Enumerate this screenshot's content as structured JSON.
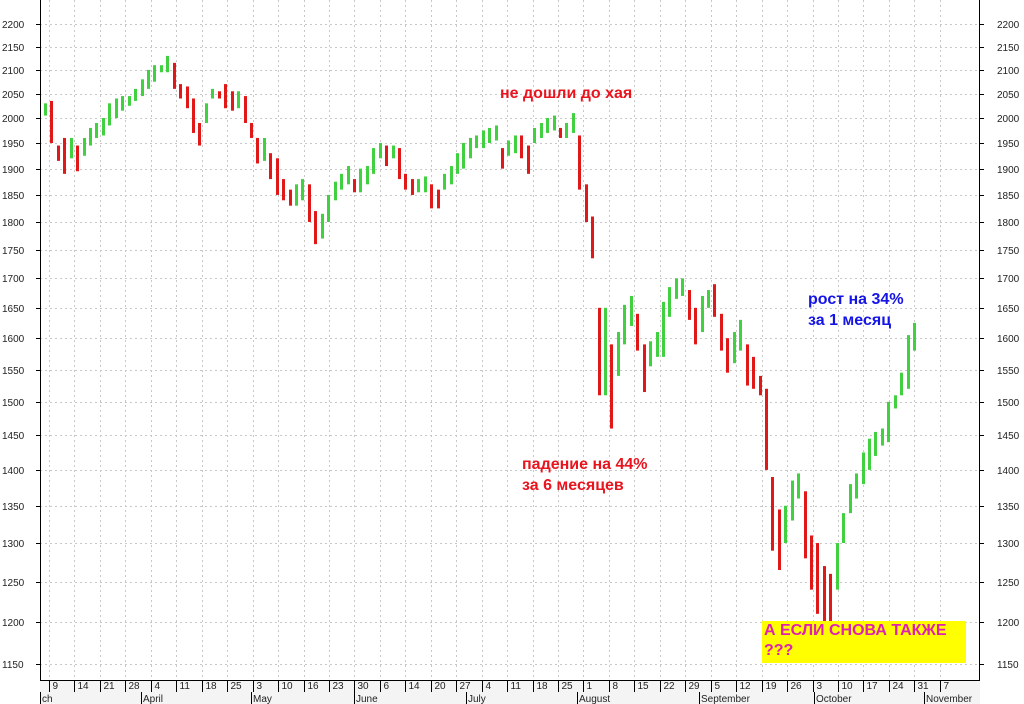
{
  "chart_data": {
    "type": "ohlc",
    "y_ticks": [
      "2200",
      "2150",
      "2100",
      "2050",
      "2000",
      "1950",
      "1900",
      "1850",
      "1800",
      "1750",
      "1700",
      "1650",
      "1600",
      "1550",
      "1500",
      "1450",
      "1400",
      "1350",
      "1300",
      "1250",
      "1200",
      "1150"
    ],
    "ylim": [
      1125,
      2225
    ],
    "log_scale": true,
    "grid": true,
    "x_day_labels": [
      "9",
      "14",
      "21",
      "28",
      "4",
      "11",
      "18",
      "25",
      "3",
      "10",
      "16",
      "23",
      "30",
      "6",
      "14",
      "20",
      "27",
      "4",
      "11",
      "18",
      "25",
      "1",
      "8",
      "15",
      "22",
      "29",
      "5",
      "12",
      "19",
      "26",
      "3",
      "10",
      "17",
      "24",
      "31",
      "7"
    ],
    "x_month_labels": [
      "ch",
      "April",
      "May",
      "June",
      "July",
      "August",
      "September",
      "October",
      "November"
    ],
    "bars_high_low": [
      [
        2030,
        2005
      ],
      [
        2035,
        1950
      ],
      [
        1945,
        1915
      ],
      [
        1960,
        1890
      ],
      [
        1960,
        1920
      ],
      [
        1945,
        1895
      ],
      [
        1960,
        1925
      ],
      [
        1980,
        1945
      ],
      [
        1990,
        1960
      ],
      [
        2000,
        1965
      ],
      [
        2030,
        1985
      ],
      [
        2040,
        2000
      ],
      [
        2045,
        2015
      ],
      [
        2045,
        2025
      ],
      [
        2060,
        2035
      ],
      [
        2080,
        2045
      ],
      [
        2100,
        2060
      ],
      [
        2110,
        2075
      ],
      [
        2110,
        2095
      ],
      [
        2130,
        2095
      ],
      [
        2115,
        2060
      ],
      [
        2070,
        2040
      ],
      [
        2065,
        2020
      ],
      [
        2040,
        1970
      ],
      [
        1990,
        1945
      ],
      [
        2030,
        1990
      ],
      [
        2060,
        2040
      ],
      [
        2055,
        2040
      ],
      [
        2070,
        2020
      ],
      [
        2055,
        2015
      ],
      [
        2055,
        2020
      ],
      [
        2045,
        1990
      ],
      [
        1990,
        1960
      ],
      [
        1960,
        1910
      ],
      [
        1960,
        1915
      ],
      [
        1930,
        1880
      ],
      [
        1920,
        1850
      ],
      [
        1880,
        1840
      ],
      [
        1860,
        1830
      ],
      [
        1870,
        1830
      ],
      [
        1880,
        1840
      ],
      [
        1870,
        1800
      ],
      [
        1820,
        1760
      ],
      [
        1815,
        1770
      ],
      [
        1850,
        1800
      ],
      [
        1875,
        1840
      ],
      [
        1890,
        1860
      ],
      [
        1905,
        1870
      ],
      [
        1880,
        1855
      ],
      [
        1900,
        1855
      ],
      [
        1905,
        1870
      ],
      [
        1940,
        1890
      ],
      [
        1950,
        1920
      ],
      [
        1945,
        1905
      ],
      [
        1945,
        1920
      ],
      [
        1940,
        1880
      ],
      [
        1890,
        1860
      ],
      [
        1880,
        1850
      ],
      [
        1880,
        1855
      ],
      [
        1885,
        1855
      ],
      [
        1870,
        1825
      ],
      [
        1860,
        1825
      ],
      [
        1890,
        1860
      ],
      [
        1905,
        1870
      ],
      [
        1930,
        1890
      ],
      [
        1950,
        1900
      ],
      [
        1960,
        1920
      ],
      [
        1965,
        1940
      ],
      [
        1975,
        1940
      ],
      [
        1980,
        1950
      ],
      [
        1985,
        1955
      ],
      [
        1940,
        1900
      ],
      [
        1955,
        1925
      ],
      [
        1965,
        1930
      ],
      [
        1965,
        1920
      ],
      [
        1945,
        1890
      ],
      [
        1980,
        1950
      ],
      [
        1990,
        1960
      ],
      [
        2000,
        1970
      ],
      [
        2005,
        1975
      ],
      [
        1980,
        1960
      ],
      [
        1990,
        1960
      ],
      [
        2010,
        1970
      ],
      [
        1965,
        1860
      ],
      [
        1870,
        1800
      ],
      [
        1810,
        1735
      ],
      [
        1650,
        1510
      ],
      [
        1650,
        1510
      ],
      [
        1590,
        1460
      ],
      [
        1610,
        1540
      ],
      [
        1655,
        1590
      ],
      [
        1670,
        1620
      ],
      [
        1640,
        1580
      ],
      [
        1590,
        1515
      ],
      [
        1595,
        1555
      ],
      [
        1610,
        1570
      ],
      [
        1660,
        1570
      ],
      [
        1685,
        1635
      ],
      [
        1700,
        1665
      ],
      [
        1700,
        1670
      ],
      [
        1680,
        1630
      ],
      [
        1650,
        1590
      ],
      [
        1670,
        1610
      ],
      [
        1680,
        1650
      ],
      [
        1690,
        1635
      ],
      [
        1640,
        1580
      ],
      [
        1600,
        1545
      ],
      [
        1610,
        1560
      ],
      [
        1630,
        1580
      ],
      [
        1590,
        1525
      ],
      [
        1570,
        1520
      ],
      [
        1540,
        1510
      ],
      [
        1520,
        1400
      ],
      [
        1390,
        1290
      ],
      [
        1345,
        1265
      ],
      [
        1350,
        1300
      ],
      [
        1385,
        1330
      ],
      [
        1395,
        1360
      ],
      [
        1370,
        1280
      ],
      [
        1310,
        1240
      ],
      [
        1300,
        1210
      ],
      [
        1270,
        1200
      ],
      [
        1260,
        1200
      ],
      [
        1300,
        1240
      ],
      [
        1340,
        1300
      ],
      [
        1380,
        1340
      ],
      [
        1395,
        1360
      ],
      [
        1425,
        1380
      ],
      [
        1445,
        1400
      ],
      [
        1455,
        1420
      ],
      [
        1460,
        1435
      ],
      [
        1500,
        1440
      ],
      [
        1510,
        1490
      ],
      [
        1545,
        1510
      ],
      [
        1605,
        1520
      ],
      [
        1625,
        1580
      ]
    ],
    "annotations": [
      "не дошли до хая",
      "рост на 34%",
      "за 1 месяц",
      "падение на 44%",
      "за 6 месяцев",
      "А ЕСЛИ СНОВА ТАКЖЕ",
      "???"
    ],
    "colors": {
      "up": "#40d040",
      "down": "#e01818",
      "grid": "#c8c8c8",
      "ann_red": "#e8141e",
      "ann_blue": "#1414e6",
      "ann_box_bg": "#ffff00",
      "ann_box_text": "#e020b0"
    }
  }
}
